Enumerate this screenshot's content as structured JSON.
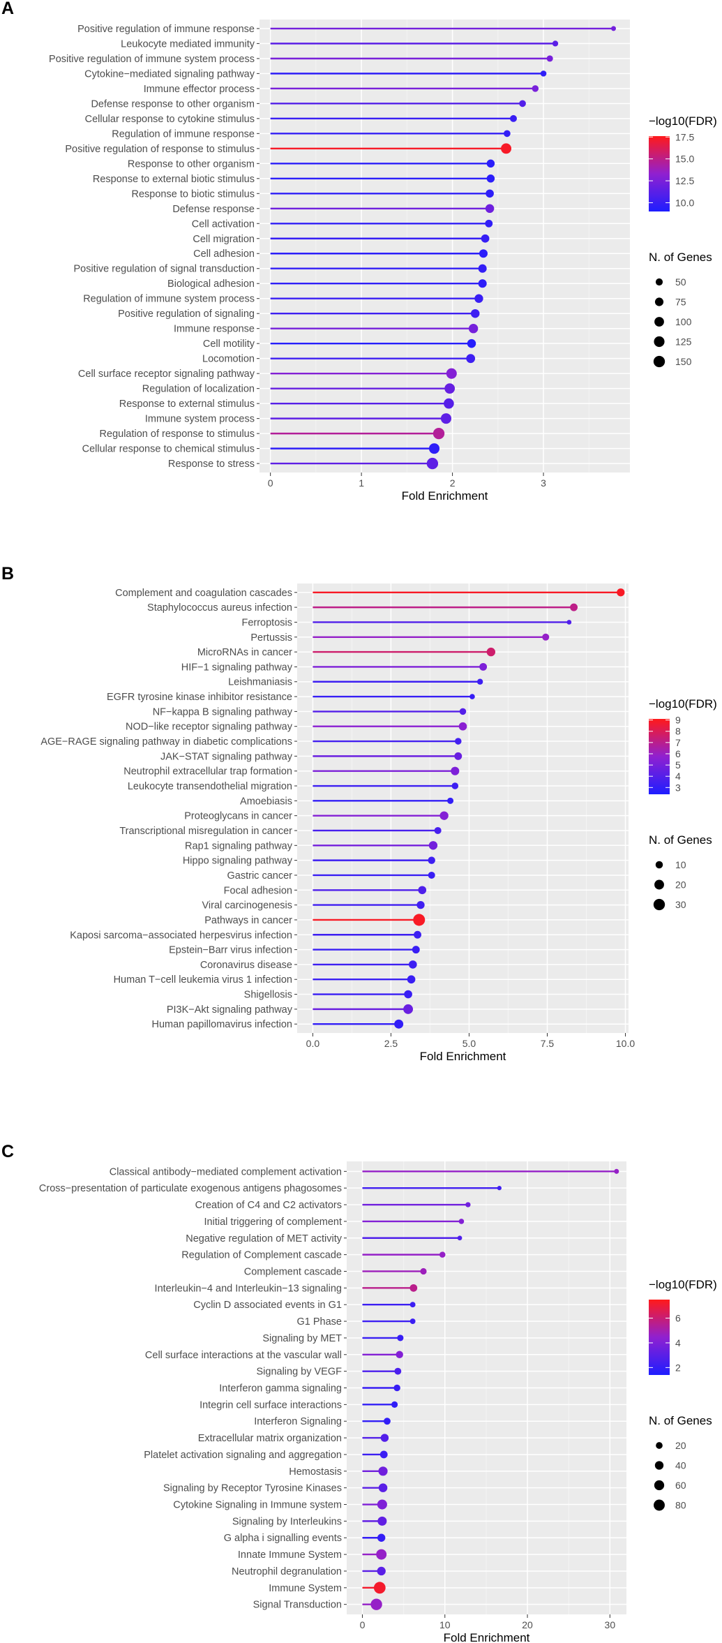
{
  "colors": {
    "panel_bg": "#EBEBEB",
    "grid_major": "#FFFFFF",
    "grid_minor": "#F4F4F4",
    "label_text": "#4D4D4D",
    "title_text": "#000000",
    "low": "#1E1EFF",
    "mid": "#9020D0",
    "high": "#FF1A1A"
  },
  "chart_data": [
    {
      "panel": "A",
      "type": "lollipop",
      "xlabel": "Fold Enrichment",
      "xlim": [
        -0.12,
        3.95
      ],
      "xticks": [
        0,
        1,
        2,
        3
      ],
      "xtick_labels": [
        "0",
        "1",
        "2",
        "3"
      ],
      "color_legend": {
        "title": "−log10(FDR)",
        "range": [
          9.0,
          17.6
        ],
        "ticks": [
          17.5,
          15.0,
          12.5,
          10.0
        ],
        "tick_labels": [
          "17.5",
          "15.0",
          "12.5",
          "10.0"
        ]
      },
      "size_legend": {
        "title": "N. of Genes",
        "values": [
          50,
          75,
          100,
          125,
          150
        ],
        "labels": [
          "50",
          "75",
          "100",
          "125",
          "150"
        ],
        "range": [
          20,
          160
        ]
      },
      "terms": [
        {
          "label": "Positive regulation of immune response",
          "fold": 3.77,
          "fdr": 12.2,
          "genes": 26
        },
        {
          "label": "Leukocyte mediated immunity",
          "fold": 3.13,
          "fdr": 11.3,
          "genes": 34
        },
        {
          "label": "Positive regulation of immune system process",
          "fold": 3.07,
          "fdr": 12.4,
          "genes": 40
        },
        {
          "label": "Cytokine−mediated signaling pathway",
          "fold": 3.0,
          "fdr": 9.6,
          "genes": 36
        },
        {
          "label": "Immune effector process",
          "fold": 2.91,
          "fdr": 12.4,
          "genes": 44
        },
        {
          "label": "Defense response to other organism",
          "fold": 2.77,
          "fdr": 11.0,
          "genes": 46
        },
        {
          "label": "Cellular response to cytokine stimulus",
          "fold": 2.67,
          "fdr": 10.0,
          "genes": 48
        },
        {
          "label": "Regulation of immune response",
          "fold": 2.6,
          "fdr": 9.8,
          "genes": 46
        },
        {
          "label": "Positive regulation of response to stimulus",
          "fold": 2.59,
          "fdr": 17.3,
          "genes": 120
        },
        {
          "label": "Response to other organism",
          "fold": 2.42,
          "fdr": 9.5,
          "genes": 66
        },
        {
          "label": "Response to external biotic stimulus",
          "fold": 2.42,
          "fdr": 9.5,
          "genes": 66
        },
        {
          "label": "Response to biotic stimulus",
          "fold": 2.41,
          "fdr": 9.6,
          "genes": 68
        },
        {
          "label": "Defense response",
          "fold": 2.41,
          "fdr": 12.0,
          "genes": 80
        },
        {
          "label": "Cell activation",
          "fold": 2.4,
          "fdr": 9.7,
          "genes": 58
        },
        {
          "label": "Cell migration",
          "fold": 2.36,
          "fdr": 9.9,
          "genes": 70
        },
        {
          "label": "Cell adhesion",
          "fold": 2.34,
          "fdr": 9.5,
          "genes": 74
        },
        {
          "label": "Positive regulation of signal transduction",
          "fold": 2.33,
          "fdr": 9.8,
          "genes": 74
        },
        {
          "label": "Biological adhesion",
          "fold": 2.33,
          "fdr": 9.6,
          "genes": 74
        },
        {
          "label": "Regulation of immune system process",
          "fold": 2.29,
          "fdr": 10.0,
          "genes": 78
        },
        {
          "label": "Positive regulation of signaling",
          "fold": 2.25,
          "fdr": 10.2,
          "genes": 80
        },
        {
          "label": "Immune response",
          "fold": 2.23,
          "fdr": 12.3,
          "genes": 94
        },
        {
          "label": "Cell motility",
          "fold": 2.21,
          "fdr": 9.3,
          "genes": 80
        },
        {
          "label": "Locomotion",
          "fold": 2.2,
          "fdr": 10.2,
          "genes": 84
        },
        {
          "label": "Cell surface receptor signaling pathway",
          "fold": 1.99,
          "fdr": 12.8,
          "genes": 124
        },
        {
          "label": "Regulation of localization",
          "fold": 1.97,
          "fdr": 11.7,
          "genes": 118
        },
        {
          "label": "Response to external stimulus",
          "fold": 1.96,
          "fdr": 11.1,
          "genes": 116
        },
        {
          "label": "Immune system process",
          "fold": 1.93,
          "fdr": 11.4,
          "genes": 124
        },
        {
          "label": "Regulation of response to stimulus",
          "fold": 1.85,
          "fdr": 14.6,
          "genes": 150
        },
        {
          "label": "Cellular response to chemical stimulus",
          "fold": 1.8,
          "fdr": 9.6,
          "genes": 124
        },
        {
          "label": "Response to stress",
          "fold": 1.78,
          "fdr": 11.4,
          "genes": 150
        }
      ]
    },
    {
      "panel": "B",
      "type": "lollipop",
      "xlabel": "Fold Enrichment",
      "xlim": [
        -0.5,
        10.1
      ],
      "xticks": [
        0,
        2.5,
        5,
        7.5,
        10
      ],
      "xtick_labels": [
        "0.0",
        "2.5",
        "5.0",
        "7.5",
        "10.0"
      ],
      "color_legend": {
        "title": "−log10(FDR)",
        "range": [
          2.4,
          9.1
        ],
        "ticks": [
          9,
          8,
          7,
          6,
          5,
          4,
          3
        ],
        "tick_labels": [
          "9",
          "8",
          "7",
          "6",
          "5",
          "4",
          "3"
        ]
      },
      "size_legend": {
        "title": "N. of Genes",
        "values": [
          10,
          20,
          30
        ],
        "labels": [
          "10",
          "20",
          "30"
        ],
        "range": [
          3,
          32
        ]
      },
      "terms": [
        {
          "label": "Complement and coagulation cascades",
          "fold": 9.85,
          "fdr": 8.9,
          "genes": 12
        },
        {
          "label": "Staphylococcus aureus infection",
          "fold": 8.35,
          "fdr": 7.1,
          "genes": 11
        },
        {
          "label": "Ferroptosis",
          "fold": 8.2,
          "fdr": 3.9,
          "genes": 4
        },
        {
          "label": "Pertussis",
          "fold": 7.45,
          "fdr": 5.9,
          "genes": 9
        },
        {
          "label": "MicroRNAs in cancer",
          "fold": 5.7,
          "fdr": 7.6,
          "genes": 15
        },
        {
          "label": "HIF−1 signaling pathway",
          "fold": 5.45,
          "fdr": 5.2,
          "genes": 11
        },
        {
          "label": "Leishmaniasis",
          "fold": 5.35,
          "fdr": 3.3,
          "genes": 6
        },
        {
          "label": "EGFR tyrosine kinase inhibitor resistance",
          "fold": 5.1,
          "fdr": 3.1,
          "genes": 5
        },
        {
          "label": "NF−kappa B signaling pathway",
          "fold": 4.8,
          "fdr": 4.0,
          "genes": 8
        },
        {
          "label": "NOD−like receptor signaling pathway",
          "fold": 4.8,
          "fdr": 5.6,
          "genes": 13
        },
        {
          "label": "AGE−RAGE signaling pathway in diabetic complications",
          "fold": 4.65,
          "fdr": 3.5,
          "genes": 8
        },
        {
          "label": "JAK−STAT signaling pathway",
          "fold": 4.65,
          "fdr": 4.6,
          "genes": 11
        },
        {
          "label": "Neutrophil extracellular trap formation",
          "fold": 4.55,
          "fdr": 5.2,
          "genes": 14
        },
        {
          "label": "Leukocyte transendothelial migration",
          "fold": 4.55,
          "fdr": 3.3,
          "genes": 8
        },
        {
          "label": "Amoebiasis",
          "fold": 4.4,
          "fdr": 3.0,
          "genes": 7
        },
        {
          "label": "Proteoglycans in cancer",
          "fold": 4.2,
          "fdr": 5.4,
          "genes": 15
        },
        {
          "label": "Transcriptional misregulation in cancer",
          "fold": 4.0,
          "fdr": 3.6,
          "genes": 9
        },
        {
          "label": "Rap1 signaling pathway",
          "fold": 3.85,
          "fdr": 4.9,
          "genes": 15
        },
        {
          "label": "Hippo signaling pathway",
          "fold": 3.8,
          "fdr": 3.3,
          "genes": 10
        },
        {
          "label": "Gastric cancer",
          "fold": 3.8,
          "fdr": 3.2,
          "genes": 9
        },
        {
          "label": "Focal adhesion",
          "fold": 3.5,
          "fdr": 3.8,
          "genes": 13
        },
        {
          "label": "Viral carcinogenesis",
          "fold": 3.45,
          "fdr": 3.4,
          "genes": 12
        },
        {
          "label": "Pathways in cancer",
          "fold": 3.4,
          "fdr": 8.9,
          "genes": 33
        },
        {
          "label": "Kaposi sarcoma−associated herpesvirus infection",
          "fold": 3.35,
          "fdr": 3.3,
          "genes": 11
        },
        {
          "label": "Epstein−Barr virus infection",
          "fold": 3.3,
          "fdr": 3.2,
          "genes": 11
        },
        {
          "label": "Coronavirus disease",
          "fold": 3.2,
          "fdr": 3.3,
          "genes": 13
        },
        {
          "label": "Human T−cell leukemia virus 1 infection",
          "fold": 3.15,
          "fdr": 3.2,
          "genes": 13
        },
        {
          "label": "Shigellosis",
          "fold": 3.05,
          "fdr": 3.2,
          "genes": 13
        },
        {
          "label": "PI3K−Akt signaling pathway",
          "fold": 3.05,
          "fdr": 4.6,
          "genes": 20
        },
        {
          "label": "Human papillomavirus infection",
          "fold": 2.75,
          "fdr": 3.0,
          "genes": 17
        }
      ]
    },
    {
      "panel": "C",
      "type": "lollipop",
      "xlabel": "Fold Enrichment",
      "xlim": [
        -1.9,
        32.0
      ],
      "xticks": [
        0,
        10,
        20,
        30
      ],
      "xtick_labels": [
        "0",
        "10",
        "20",
        "30"
      ],
      "color_legend": {
        "title": "−log10(FDR)",
        "range": [
          1.4,
          7.5
        ],
        "ticks": [
          6,
          4,
          2
        ],
        "tick_labels": [
          "6",
          "4",
          "2"
        ]
      },
      "size_legend": {
        "title": "N. of Genes",
        "values": [
          20,
          40,
          60,
          80
        ],
        "labels": [
          "20",
          "40",
          "60",
          "80"
        ],
        "range": [
          4,
          92
        ]
      },
      "terms": [
        {
          "label": "Classical antibody−mediated complement activation",
          "fold": 30.8,
          "fdr": 4.6,
          "genes": 8
        },
        {
          "label": "Cross−presentation of particulate exogenous antigens phagosomes",
          "fold": 16.6,
          "fdr": 2.3,
          "genes": 6
        },
        {
          "label": "Creation of C4 and C2 activators",
          "fold": 12.8,
          "fdr": 3.6,
          "genes": 9
        },
        {
          "label": "Initial triggering of complement",
          "fold": 12.0,
          "fdr": 4.1,
          "genes": 10
        },
        {
          "label": "Negative regulation of MET activity",
          "fold": 11.8,
          "fdr": 2.7,
          "genes": 7
        },
        {
          "label": "Regulation of Complement cascade",
          "fold": 9.7,
          "fdr": 4.6,
          "genes": 14
        },
        {
          "label": "Complement cascade",
          "fold": 7.4,
          "fdr": 4.8,
          "genes": 17
        },
        {
          "label": "Interleukin−4 and Interleukin−13 signaling",
          "fold": 6.2,
          "fdr": 5.6,
          "genes": 27
        },
        {
          "label": "Cyclin D associated events in G1",
          "fold": 6.1,
          "fdr": 2.2,
          "genes": 11
        },
        {
          "label": "G1 Phase",
          "fold": 6.1,
          "fdr": 2.2,
          "genes": 11
        },
        {
          "label": "Signaling by MET",
          "fold": 4.6,
          "fdr": 2.1,
          "genes": 17
        },
        {
          "label": "Cell surface interactions at the vascular wall",
          "fold": 4.5,
          "fdr": 4.1,
          "genes": 25
        },
        {
          "label": "Signaling by VEGF",
          "fold": 4.3,
          "fdr": 2.6,
          "genes": 21
        },
        {
          "label": "Interferon gamma signaling",
          "fold": 4.2,
          "fdr": 2.1,
          "genes": 19
        },
        {
          "label": "Integrin cell surface interactions",
          "fold": 3.9,
          "fdr": 1.9,
          "genes": 17
        },
        {
          "label": "Interferon Signaling",
          "fold": 3.0,
          "fdr": 1.9,
          "genes": 21
        },
        {
          "label": "Extracellular matrix organization",
          "fold": 2.7,
          "fdr": 2.8,
          "genes": 32
        },
        {
          "label": "Platelet activation signaling and aggregation",
          "fold": 2.6,
          "fdr": 2.2,
          "genes": 28
        },
        {
          "label": "Hemostasis",
          "fold": 2.5,
          "fdr": 3.6,
          "genes": 48
        },
        {
          "label": "Signaling by Receptor Tyrosine Kinases",
          "fold": 2.5,
          "fdr": 3.0,
          "genes": 42
        },
        {
          "label": "Cytokine Signaling in Immune system",
          "fold": 2.4,
          "fdr": 4.0,
          "genes": 58
        },
        {
          "label": "Signaling by Interleukins",
          "fold": 2.4,
          "fdr": 3.2,
          "genes": 47
        },
        {
          "label": "G alpha i signalling events",
          "fold": 2.3,
          "fdr": 2.0,
          "genes": 32
        },
        {
          "label": "Innate Immune System",
          "fold": 2.3,
          "fdr": 4.6,
          "genes": 68
        },
        {
          "label": "Neutrophil degranulation",
          "fold": 2.3,
          "fdr": 3.0,
          "genes": 40
        },
        {
          "label": "Immune System",
          "fold": 2.1,
          "fdr": 7.2,
          "genes": 92
        },
        {
          "label": "Signal Transduction",
          "fold": 1.7,
          "fdr": 4.6,
          "genes": 86
        }
      ]
    }
  ]
}
